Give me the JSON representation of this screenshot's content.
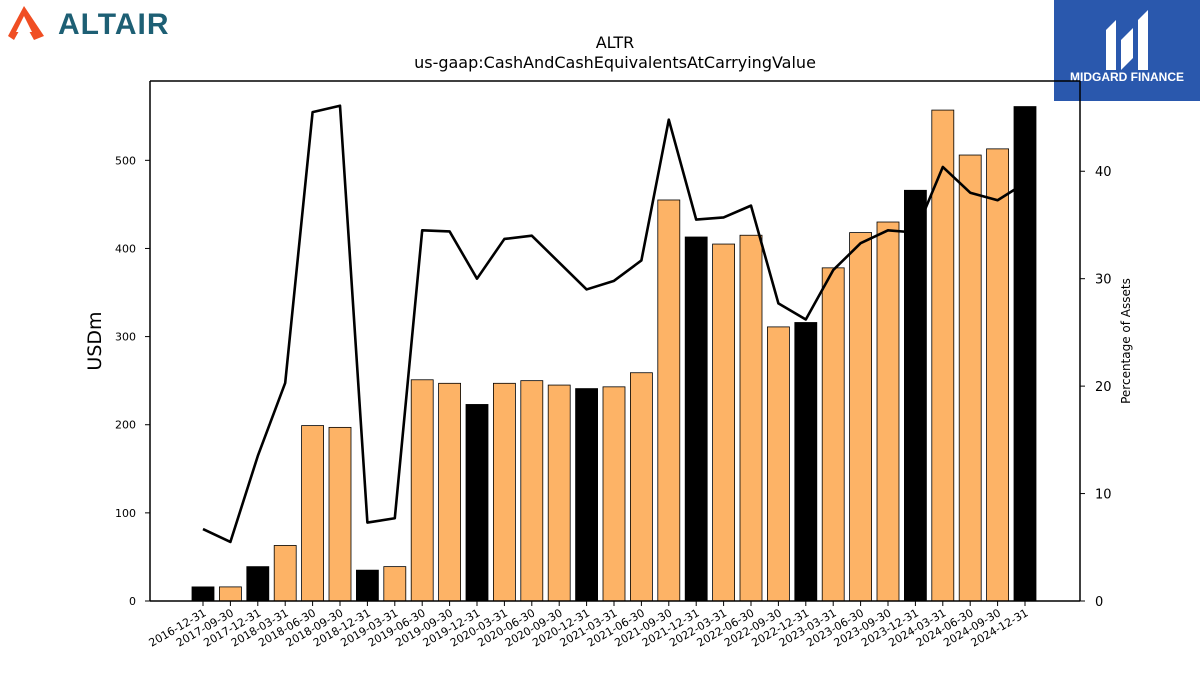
{
  "branding": {
    "left_logo_text": "ALTAIR",
    "right_logo_text": "MIDGARD FINANCE",
    "altair_color": "#1d5f74",
    "altair_mark_color": "#f04e23",
    "midgard_bg": "#2a58ad"
  },
  "chart_data": {
    "type": "bar",
    "title": "ALTR",
    "subtitle": "us-gaap:CashAndCashEquivalentsAtCarryingValue",
    "ylabel": "USDm",
    "y2label": "Percentage of Assets",
    "ylim": [
      0,
      590
    ],
    "y2lim": [
      0,
      48.4
    ],
    "yticks": [
      0,
      100,
      200,
      300,
      400,
      500
    ],
    "y2ticks": [
      0,
      10,
      20,
      30,
      40
    ],
    "grid": false,
    "categories": [
      "2016-12-31",
      "2017-09-30",
      "2017-12-31",
      "2018-03-31",
      "2018-06-30",
      "2018-09-30",
      "2018-12-31",
      "2019-03-31",
      "2019-06-30",
      "2019-09-30",
      "2019-12-31",
      "2020-03-31",
      "2020-06-30",
      "2020-09-30",
      "2020-12-31",
      "2021-03-31",
      "2021-06-30",
      "2021-09-30",
      "2021-12-31",
      "2022-03-31",
      "2022-06-30",
      "2022-09-30",
      "2022-12-31",
      "2023-03-31",
      "2023-06-30",
      "2023-09-30",
      "2023-12-31",
      "2024-03-31",
      "2024-06-30",
      "2024-09-30",
      "2024-12-31"
    ],
    "series": [
      {
        "kind": "bar",
        "values": [
          16,
          16,
          39,
          63,
          199,
          197,
          35,
          39,
          251,
          247,
          223,
          247,
          250,
          245,
          241,
          243,
          259,
          455,
          413,
          405,
          415,
          311,
          316,
          378,
          418,
          430,
          466,
          557,
          506,
          513,
          561
        ],
        "annual_flags": [
          true,
          false,
          true,
          false,
          false,
          false,
          true,
          false,
          false,
          false,
          true,
          false,
          false,
          false,
          true,
          false,
          false,
          false,
          true,
          false,
          false,
          false,
          true,
          false,
          false,
          false,
          true,
          false,
          false,
          false,
          true
        ],
        "annual_color": "#000000",
        "quarter_color": "#fdb366"
      },
      {
        "kind": "line",
        "axis": "right",
        "values": [
          6.7,
          5.5,
          13.5,
          20.3,
          45.5,
          46.1,
          7.3,
          7.7,
          34.5,
          34.4,
          30.0,
          33.7,
          34.0,
          31.5,
          29.0,
          29.8,
          31.7,
          44.8,
          35.5,
          35.7,
          36.8,
          27.7,
          26.2,
          30.8,
          33.3,
          34.5,
          34.3,
          40.4,
          38.0,
          37.3,
          38.9
        ],
        "color": "#000000"
      }
    ]
  }
}
